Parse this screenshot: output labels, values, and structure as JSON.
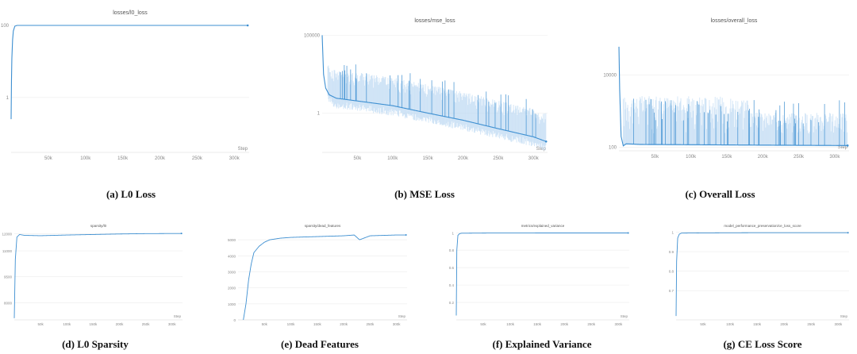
{
  "colors": {
    "line": "#3d8fd1",
    "band": "#b7d6f2",
    "grid": "#ececec"
  },
  "chart_data": [
    {
      "type": "line",
      "title": "losses/l0_loss",
      "caption": "(a) L0 Loss",
      "xlabel": "Step",
      "xlim": [
        0,
        320000
      ],
      "yscale": "log",
      "ylim": [
        0.03,
        150
      ],
      "xticks": [
        50000,
        100000,
        150000,
        200000,
        250000,
        300000
      ],
      "xtick_labels": [
        "50k",
        "100k",
        "150k",
        "200k",
        "250k",
        "300k"
      ],
      "yticks": [
        1,
        100
      ],
      "ytick_labels": [
        "1",
        "100"
      ],
      "series": [
        {
          "x": [
            0,
            500,
            1000,
            2000,
            3000,
            5000,
            8000,
            12000,
            20000,
            60000,
            150000,
            250000,
            318000
          ],
          "y": [
            0.25,
            3,
            12,
            40,
            70,
            95,
            100,
            100,
            100,
            100,
            100,
            100,
            100
          ]
        }
      ]
    },
    {
      "type": "line",
      "title": "losses/mse_loss",
      "caption": "(b) MSE Loss",
      "xlabel": "Step",
      "xlim": [
        0,
        320000
      ],
      "yscale": "log",
      "ylim": [
        0.003,
        300000
      ],
      "xticks": [
        50000,
        100000,
        150000,
        200000,
        250000,
        300000
      ],
      "xtick_labels": [
        "50k",
        "100k",
        "150k",
        "200k",
        "250k",
        "300k"
      ],
      "yticks": [
        1,
        100000
      ],
      "ytick_labels": [
        "1",
        "100000"
      ],
      "series": [
        {
          "x": [
            0,
            2000,
            5000,
            10000,
            20000,
            50000,
            100000,
            150000,
            200000,
            250000,
            300000,
            318000
          ],
          "y": [
            100000,
            300,
            40,
            15,
            9,
            6,
            3,
            1,
            0.35,
            0.1,
            0.03,
            0.015
          ]
        }
      ]
    },
    {
      "type": "line",
      "title": "losses/overall_loss",
      "caption": "(c) Overall Loss",
      "xlabel": "Step",
      "xlim": [
        0,
        320000
      ],
      "yscale": "log",
      "ylim": [
        80,
        200000
      ],
      "xticks": [
        50000,
        100000,
        150000,
        200000,
        250000,
        300000
      ],
      "xtick_labels": [
        "50k",
        "100k",
        "150k",
        "200k",
        "250k",
        "300k"
      ],
      "yticks": [
        100,
        10000
      ],
      "ytick_labels": [
        "100",
        "10000"
      ],
      "series": [
        {
          "x": [
            0,
            1000,
            3000,
            6000,
            10000,
            30000,
            100000,
            200000,
            318000
          ],
          "y": [
            60000,
            4000,
            200,
            110,
            125,
            120,
            118,
            115,
            112
          ]
        }
      ]
    },
    {
      "type": "line",
      "title": "sparsity/l0",
      "caption": "(d) L0 Sparsity",
      "xlabel": "Step",
      "xlim": [
        0,
        320000
      ],
      "ylim": [
        7000,
        12200
      ],
      "xticks": [
        50000,
        100000,
        150000,
        200000,
        250000,
        300000
      ],
      "xtick_labels": [
        "50k",
        "100k",
        "150k",
        "200k",
        "250k",
        "300k"
      ],
      "yticks": [
        8000,
        9500,
        11000,
        12000
      ],
      "ytick_labels": [
        "8000",
        "9500",
        "11000",
        "12000"
      ],
      "series": [
        {
          "x": [
            0,
            2000,
            5000,
            10000,
            20000,
            50000,
            100000,
            150000,
            200000,
            250000,
            318000
          ],
          "y": [
            7100,
            10500,
            11800,
            11950,
            11900,
            11880,
            11920,
            11950,
            11980,
            12000,
            12010
          ]
        }
      ]
    },
    {
      "type": "line",
      "title": "sparsity/dead_features",
      "caption": "(e) Dead Features",
      "xlabel": "Step",
      "xlim": [
        0,
        320000
      ],
      "ylim": [
        0,
        5600
      ],
      "xticks": [
        50000,
        100000,
        150000,
        200000,
        250000,
        300000
      ],
      "xtick_labels": [
        "50k",
        "100k",
        "150k",
        "200k",
        "250k",
        "300k"
      ],
      "yticks": [
        0,
        1000,
        2000,
        3000,
        4000,
        5000
      ],
      "ytick_labels": [
        "0",
        "1000",
        "2000",
        "3000",
        "4000",
        "5000"
      ],
      "series": [
        {
          "x": [
            10000,
            15000,
            20000,
            25000,
            30000,
            40000,
            50000,
            60000,
            80000,
            100000,
            150000,
            200000,
            220000,
            230000,
            250000,
            300000,
            318000
          ],
          "y": [
            0,
            1000,
            2500,
            3500,
            4200,
            4600,
            4850,
            5000,
            5100,
            5150,
            5200,
            5250,
            5300,
            5000,
            5250,
            5300,
            5300
          ]
        }
      ]
    },
    {
      "type": "line",
      "title": "metrics/explained_variance",
      "caption": "(f) Explained Variance",
      "xlabel": "Step",
      "xlim": [
        0,
        320000
      ],
      "ylim": [
        0,
        1.03
      ],
      "xticks": [
        50000,
        100000,
        150000,
        200000,
        250000,
        300000
      ],
      "xtick_labels": [
        "50k",
        "100k",
        "150k",
        "200k",
        "250k",
        "300k"
      ],
      "yticks": [
        0.2,
        0.4,
        0.6,
        0.8,
        1
      ],
      "ytick_labels": [
        "0.2",
        "0.4",
        "0.6",
        "0.8",
        "1"
      ],
      "series": [
        {
          "x": [
            0,
            1000,
            3000,
            6000,
            10000,
            50000,
            150000,
            250000,
            318000
          ],
          "y": [
            0.05,
            0.8,
            0.97,
            0.99,
            0.995,
            0.997,
            0.998,
            0.998,
            0.998
          ]
        }
      ]
    },
    {
      "type": "line",
      "title": "model_performance_preservation/ce_loss_score",
      "caption": "(g) CE Loss Score",
      "xlabel": "Step",
      "xlim": [
        0,
        320000
      ],
      "ylim": [
        0.55,
        1.01
      ],
      "xticks": [
        50000,
        100000,
        150000,
        200000,
        250000,
        300000
      ],
      "xtick_labels": [
        "50k",
        "100k",
        "150k",
        "200k",
        "250k",
        "300k"
      ],
      "yticks": [
        0.7,
        0.8,
        0.9,
        1
      ],
      "ytick_labels": [
        "0.7",
        "0.8",
        "0.9",
        "1"
      ],
      "series": [
        {
          "x": [
            0,
            1000,
            3000,
            6000,
            10000,
            50000,
            150000,
            250000,
            318000
          ],
          "y": [
            0.57,
            0.85,
            0.97,
            0.99,
            0.995,
            0.996,
            0.997,
            0.997,
            0.997
          ]
        }
      ]
    }
  ]
}
